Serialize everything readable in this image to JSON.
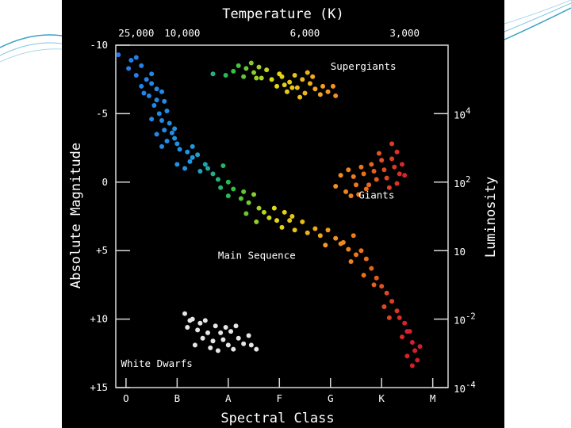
{
  "chart_data": {
    "type": "scatter",
    "title": "Temperature (K)",
    "xlabel": "Spectral Class",
    "ylabel": "Absolute Magnitude",
    "y2label": "Luminosity",
    "x_categories": [
      "O",
      "B",
      "A",
      "F",
      "G",
      "K",
      "M"
    ],
    "xlim": [
      -0.2,
      6.3
    ],
    "ylim": [
      -10,
      15
    ],
    "y_inverted": true,
    "top_ticks": [
      {
        "label": "25,000",
        "x": 0.2
      },
      {
        "label": "10,000",
        "x": 1.1
      },
      {
        "label": "6,000",
        "x": 3.5
      },
      {
        "label": "3,000",
        "x": 5.45
      }
    ],
    "left_ticks": [
      {
        "label": "-10",
        "y": -10
      },
      {
        "label": "-5",
        "y": -5
      },
      {
        "label": "0",
        "y": 0
      },
      {
        "label": "+5",
        "y": 5
      },
      {
        "label": "+10",
        "y": 10
      },
      {
        "label": "+15",
        "y": 15
      }
    ],
    "right_ticks": [
      {
        "base": "10",
        "exp": "4",
        "y": -5
      },
      {
        "base": "10",
        "exp": "2",
        "y": 0
      },
      {
        "base": "10",
        "exp": "",
        "y": 5
      },
      {
        "base": "10",
        "exp": "-2",
        "y": 10
      },
      {
        "base": "10",
        "exp": "-4",
        "y": 15
      }
    ],
    "region_labels": [
      {
        "text": "Supergiants",
        "x": 4.0,
        "y": -8.2
      },
      {
        "text": "Giants",
        "x": 4.55,
        "y": 1.2
      },
      {
        "text": "Main Sequence",
        "x": 1.8,
        "y": 5.6
      },
      {
        "text": "White Dwarfs",
        "x": -0.1,
        "y": 13.5
      }
    ],
    "groups": [
      {
        "region": "main-sequence",
        "points": [
          [
            -0.15,
            -9.3
          ],
          [
            0.1,
            -8.9
          ],
          [
            0.2,
            -9.1
          ],
          [
            0.05,
            -8.3
          ],
          [
            0.3,
            -8.5
          ],
          [
            0.2,
            -7.8
          ],
          [
            0.4,
            -7.5
          ],
          [
            0.5,
            -7.9
          ],
          [
            0.3,
            -7.0
          ],
          [
            0.5,
            -7.2
          ],
          [
            0.6,
            -6.8
          ],
          [
            0.45,
            -6.3
          ],
          [
            0.7,
            -6.6
          ],
          [
            0.6,
            -6.0
          ],
          [
            0.75,
            -5.9
          ],
          [
            0.55,
            -5.6
          ],
          [
            0.8,
            -5.2
          ],
          [
            0.65,
            -5.0
          ],
          [
            0.7,
            -4.5
          ],
          [
            0.85,
            -4.3
          ],
          [
            0.5,
            -4.6
          ],
          [
            0.75,
            -3.8
          ],
          [
            0.9,
            -3.6
          ],
          [
            0.6,
            -3.5
          ],
          [
            0.95,
            -3.2
          ],
          [
            0.8,
            -3.0
          ],
          [
            1.0,
            -2.8
          ],
          [
            0.7,
            -2.6
          ],
          [
            1.05,
            -2.4
          ],
          [
            1.2,
            -2.2
          ],
          [
            1.3,
            -2.6
          ],
          [
            1.4,
            -2.0
          ],
          [
            1.25,
            -1.5
          ],
          [
            1.55,
            -1.3
          ],
          [
            1.0,
            -1.3
          ],
          [
            1.15,
            -1.0
          ],
          [
            1.45,
            -0.8
          ],
          [
            1.6,
            -1.0
          ],
          [
            1.7,
            -0.6
          ],
          [
            1.9,
            -1.2
          ],
          [
            1.8,
            -0.2
          ],
          [
            2.0,
            0.0
          ],
          [
            1.85,
            0.4
          ],
          [
            2.1,
            0.5
          ],
          [
            2.3,
            0.7
          ],
          [
            2.0,
            1.0
          ],
          [
            2.25,
            1.2
          ],
          [
            2.4,
            1.5
          ],
          [
            2.5,
            0.9
          ],
          [
            2.6,
            1.9
          ],
          [
            2.35,
            2.3
          ],
          [
            2.7,
            2.2
          ],
          [
            2.8,
            2.6
          ],
          [
            2.55,
            2.9
          ],
          [
            2.95,
            2.8
          ],
          [
            3.1,
            2.2
          ],
          [
            3.05,
            3.3
          ],
          [
            3.2,
            2.8
          ],
          [
            3.3,
            3.5
          ],
          [
            3.45,
            2.9
          ],
          [
            3.55,
            3.7
          ],
          [
            3.7,
            3.4
          ],
          [
            3.8,
            3.9
          ],
          [
            3.95,
            3.5
          ],
          [
            4.1,
            4.1
          ],
          [
            3.9,
            4.6
          ],
          [
            4.25,
            4.4
          ],
          [
            4.35,
            4.9
          ],
          [
            4.45,
            3.9
          ],
          [
            4.5,
            5.3
          ],
          [
            4.6,
            5.0
          ],
          [
            4.7,
            5.6
          ],
          [
            4.4,
            5.8
          ],
          [
            4.8,
            6.3
          ],
          [
            4.65,
            6.8
          ],
          [
            4.9,
            7.0
          ],
          [
            5.0,
            7.6
          ],
          [
            4.85,
            7.5
          ],
          [
            5.1,
            8.1
          ],
          [
            5.2,
            8.7
          ],
          [
            5.05,
            9.1
          ],
          [
            5.3,
            9.4
          ],
          [
            5.35,
            9.9
          ],
          [
            5.15,
            9.9
          ],
          [
            5.45,
            10.3
          ],
          [
            5.55,
            10.9
          ],
          [
            5.4,
            11.3
          ],
          [
            5.6,
            11.7
          ],
          [
            5.65,
            12.3
          ],
          [
            5.5,
            12.7
          ],
          [
            5.7,
            13.0
          ],
          [
            5.6,
            13.4
          ],
          [
            5.75,
            12.0
          ],
          [
            5.5,
            10.9
          ],
          [
            2.9,
            1.9
          ],
          [
            3.25,
            2.5
          ],
          [
            4.2,
            4.5
          ],
          [
            1.3,
            -1.8
          ],
          [
            0.35,
            -6.5
          ],
          [
            0.95,
            -3.9
          ]
        ]
      },
      {
        "region": "supergiants",
        "points": [
          [
            1.7,
            -7.9
          ],
          [
            1.95,
            -7.8
          ],
          [
            2.1,
            -8.1
          ],
          [
            2.2,
            -8.5
          ],
          [
            2.3,
            -7.7
          ],
          [
            2.35,
            -8.3
          ],
          [
            2.45,
            -8.7
          ],
          [
            2.5,
            -8.0
          ],
          [
            2.6,
            -8.4
          ],
          [
            2.65,
            -7.6
          ],
          [
            2.75,
            -8.2
          ],
          [
            2.85,
            -7.5
          ],
          [
            2.95,
            -7.0
          ],
          [
            3.05,
            -7.7
          ],
          [
            3.1,
            -7.1
          ],
          [
            3.15,
            -6.6
          ],
          [
            3.2,
            -7.3
          ],
          [
            3.3,
            -7.8
          ],
          [
            3.35,
            -6.9
          ],
          [
            3.45,
            -7.5
          ],
          [
            3.5,
            -6.5
          ],
          [
            3.6,
            -7.2
          ],
          [
            3.7,
            -6.8
          ],
          [
            3.8,
            -6.4
          ],
          [
            3.85,
            -7.0
          ],
          [
            3.95,
            -6.6
          ],
          [
            4.05,
            -7.0
          ],
          [
            4.1,
            -6.3
          ],
          [
            3.55,
            -8.0
          ],
          [
            3.65,
            -7.7
          ],
          [
            2.55,
            -7.6
          ],
          [
            3.0,
            -7.9
          ],
          [
            3.4,
            -6.2
          ],
          [
            3.25,
            -6.9
          ]
        ]
      },
      {
        "region": "giants",
        "points": [
          [
            4.1,
            0.3
          ],
          [
            4.2,
            -0.5
          ],
          [
            4.3,
            0.7
          ],
          [
            4.35,
            -0.9
          ],
          [
            4.45,
            -0.4
          ],
          [
            4.5,
            0.2
          ],
          [
            4.6,
            -1.1
          ],
          [
            4.65,
            -0.6
          ],
          [
            4.7,
            0.5
          ],
          [
            4.8,
            -1.3
          ],
          [
            4.85,
            -0.8
          ],
          [
            4.9,
            -0.2
          ],
          [
            5.0,
            -1.6
          ],
          [
            5.05,
            -0.9
          ],
          [
            5.1,
            -0.3
          ],
          [
            5.2,
            -1.7
          ],
          [
            5.25,
            -1.1
          ],
          [
            5.3,
            0.1
          ],
          [
            5.35,
            -0.6
          ],
          [
            5.4,
            -1.3
          ],
          [
            5.45,
            -0.5
          ],
          [
            5.2,
            -2.8
          ],
          [
            5.3,
            -2.2
          ],
          [
            4.95,
            -2.1
          ],
          [
            4.55,
            0.9
          ],
          [
            4.75,
            0.2
          ],
          [
            5.15,
            0.4
          ],
          [
            4.4,
            1.0
          ]
        ]
      },
      {
        "region": "white-dwarfs",
        "points": [
          [
            1.15,
            9.6
          ],
          [
            1.3,
            10.0
          ],
          [
            1.45,
            10.3
          ],
          [
            1.55,
            10.1
          ],
          [
            1.2,
            10.6
          ],
          [
            1.4,
            10.8
          ],
          [
            1.6,
            11.0
          ],
          [
            1.75,
            10.5
          ],
          [
            1.85,
            11.0
          ],
          [
            1.95,
            10.6
          ],
          [
            2.05,
            10.9
          ],
          [
            2.15,
            10.5
          ],
          [
            1.5,
            11.4
          ],
          [
            1.7,
            11.6
          ],
          [
            1.9,
            11.5
          ],
          [
            2.0,
            11.9
          ],
          [
            2.2,
            11.4
          ],
          [
            2.3,
            11.8
          ],
          [
            1.35,
            11.9
          ],
          [
            1.65,
            12.1
          ],
          [
            1.8,
            12.3
          ],
          [
            2.1,
            12.2
          ],
          [
            2.45,
            11.9
          ],
          [
            2.55,
            12.2
          ],
          [
            2.4,
            11.2
          ],
          [
            1.25,
            10.1
          ]
        ]
      }
    ]
  }
}
